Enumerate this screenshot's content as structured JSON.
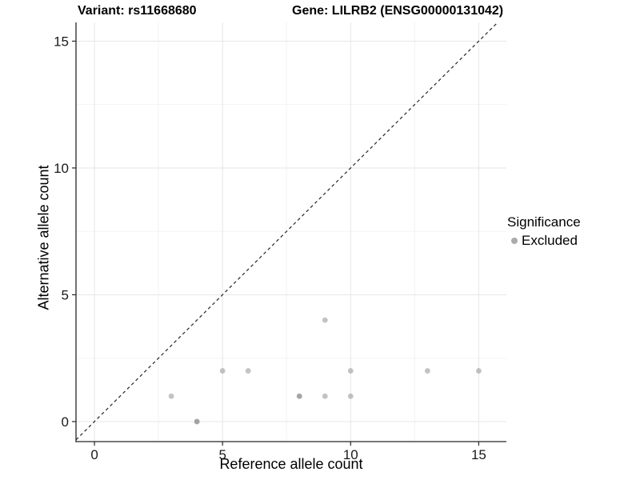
{
  "header": {
    "variant_title": "Variant: rs11668680",
    "gene_title": "Gene: LILRB2 (ENSG00000131042)"
  },
  "chart_data": {
    "type": "scatter",
    "xlabel": "Reference allele count",
    "ylabel": "Alternative allele count",
    "x_ticks": [
      0,
      5,
      10,
      15
    ],
    "y_ticks": [
      0,
      5,
      10,
      15
    ],
    "x_minor_ticks": [
      2.5,
      7.5,
      12.5
    ],
    "y_minor_ticks": [
      2.5,
      7.5,
      12.5
    ],
    "xlim": [
      -0.72,
      16.08
    ],
    "ylim": [
      -0.79,
      15.74
    ],
    "grid": "major+minor",
    "points": [
      {
        "x": 3,
        "y": 1,
        "n": 1
      },
      {
        "x": 4,
        "y": 0,
        "n": 2
      },
      {
        "x": 5,
        "y": 2,
        "n": 1
      },
      {
        "x": 6,
        "y": 2,
        "n": 1
      },
      {
        "x": 8,
        "y": 1,
        "n": 2
      },
      {
        "x": 9,
        "y": 1,
        "n": 1
      },
      {
        "x": 9,
        "y": 4,
        "n": 1
      },
      {
        "x": 10,
        "y": 1,
        "n": 1
      },
      {
        "x": 10,
        "y": 2,
        "n": 1
      },
      {
        "x": 13,
        "y": 2,
        "n": 1
      },
      {
        "x": 15,
        "y": 2,
        "n": 1
      }
    ],
    "identity_line": {
      "style": "dashed",
      "equation": "y = x"
    },
    "legend": {
      "title": "Significance",
      "position": "right",
      "items": [
        {
          "label": "Excluded",
          "color": "#ababab"
        }
      ]
    },
    "colors": {
      "point": "#878787",
      "point_alpha": 0.5,
      "grid_major": "#e6e6e6",
      "grid_minor": "#f2f2f2",
      "axis": "#262626",
      "tick_label": "#1a1a1a",
      "dashed_line": "#262626",
      "background": "#ffffff"
    }
  }
}
